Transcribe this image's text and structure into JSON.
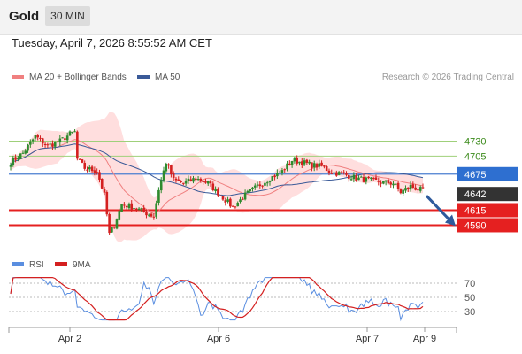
{
  "header": {
    "symbol": "Gold",
    "timeframe": "30 MIN"
  },
  "datetime": "Tuesday, April 7, 2026 8:55:52 AM CET",
  "legend": {
    "ma20": "MA 20 + Bollinger Bands",
    "ma50": "MA 50",
    "credit": "Research © 2026 Trading Central"
  },
  "rsi_legend": {
    "rsi": "RSI",
    "ma": "9MA"
  },
  "colors": {
    "ma20": "#f08080",
    "ma50": "#3a5a98",
    "bollinger": "#ffd8d8",
    "up": "#2e8b2e",
    "down": "#d42020",
    "rsi": "#5a8ee0",
    "rsi_ma": "#d42020",
    "level_green": "#9fd07a",
    "level_red": "#e52020",
    "current_line": "#4a7ed0",
    "price_tag_dark": "#333333",
    "arrow": "#2e5a9c"
  },
  "chart_data": [
    {
      "type": "candlestick",
      "title": "Gold",
      "timeframe": "30 MIN",
      "x_tick_labels": [
        "Apr 2",
        "Apr 6",
        "Apr 7",
        "Apr 9"
      ],
      "y_range": [
        4545,
        4825
      ],
      "horizontal_levels": [
        {
          "label": "4730",
          "value": 4730,
          "kind": "resistance"
        },
        {
          "label": "4705",
          "value": 4705,
          "kind": "resistance"
        },
        {
          "label": "4675",
          "value": 4675,
          "kind": "pivot"
        },
        {
          "label": "4615",
          "value": 4615,
          "kind": "support"
        },
        {
          "label": "4590",
          "value": 4590,
          "kind": "support"
        }
      ],
      "last_price": {
        "label": "4642",
        "value": 4642
      },
      "forecast_arrow": {
        "from": 4642,
        "to": 4590
      },
      "series": [
        {
          "name": "MA 20 + Bollinger Bands",
          "indicator": "ma20_bollinger"
        },
        {
          "name": "MA 50",
          "indicator": "ma50"
        }
      ]
    },
    {
      "type": "line",
      "title": "RSI",
      "y_ticks": [
        "70",
        "50",
        "30"
      ],
      "y_range": [
        10,
        80
      ],
      "series": [
        {
          "name": "RSI"
        },
        {
          "name": "9MA"
        }
      ]
    }
  ]
}
